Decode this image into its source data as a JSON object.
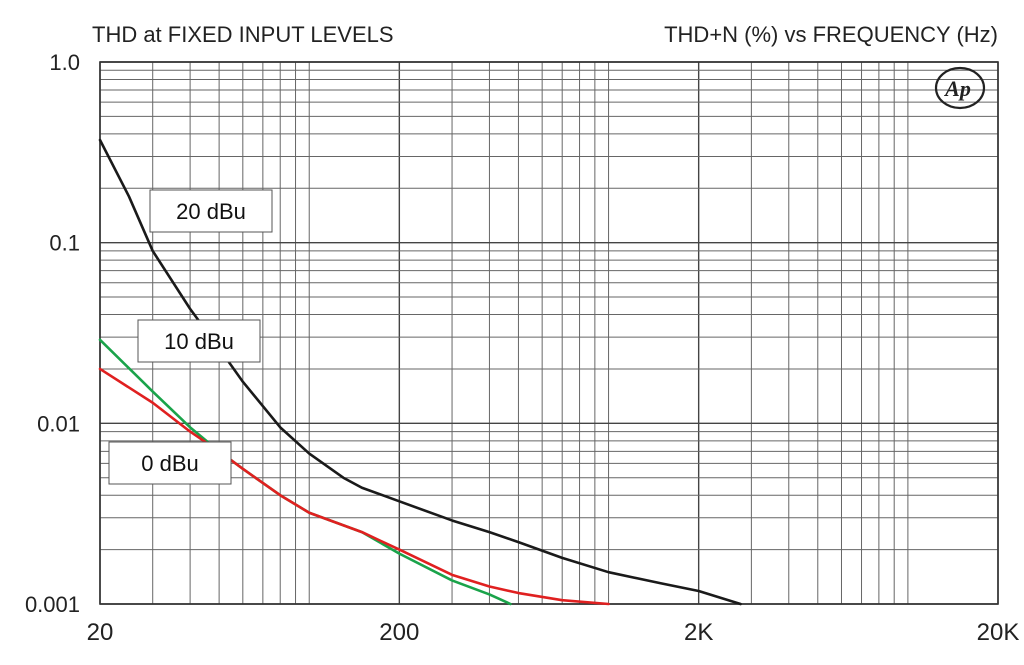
{
  "chart_data": {
    "type": "line",
    "title": "THD at FIXED INPUT LEVELS",
    "subtitle": "THD+N (%) vs FREQUENCY (Hz)",
    "x_scale": "log",
    "y_scale": "log",
    "xlim": [
      20,
      20000
    ],
    "ylim": [
      0.001,
      1.0
    ],
    "x_ticks": [
      {
        "value": 20,
        "label": "20"
      },
      {
        "value": 200,
        "label": "200"
      },
      {
        "value": 2000,
        "label": "2K"
      },
      {
        "value": 20000,
        "label": "20K"
      }
    ],
    "y_ticks": [
      {
        "value": 1.0,
        "label": "1.0"
      },
      {
        "value": 0.1,
        "label": "0.1"
      },
      {
        "value": 0.01,
        "label": "0.01"
      },
      {
        "value": 0.001,
        "label": "0.001"
      }
    ],
    "grid": true,
    "logo": "AP",
    "series": [
      {
        "name": "20 dBu",
        "color": "#1a1a1a",
        "points": [
          [
            20,
            0.37
          ],
          [
            25,
            0.18
          ],
          [
            30,
            0.09
          ],
          [
            40,
            0.043
          ],
          [
            50,
            0.026
          ],
          [
            60,
            0.017
          ],
          [
            80,
            0.0095
          ],
          [
            100,
            0.0068
          ],
          [
            130,
            0.005
          ],
          [
            150,
            0.0044
          ],
          [
            200,
            0.0037
          ],
          [
            300,
            0.0029
          ],
          [
            400,
            0.0025
          ],
          [
            500,
            0.0022
          ],
          [
            700,
            0.0018
          ],
          [
            1000,
            0.0015
          ],
          [
            1500,
            0.0013
          ],
          [
            2000,
            0.00118
          ],
          [
            2760,
            0.001
          ]
        ]
      },
      {
        "name": "10 dBu",
        "color": "#1aa34a",
        "points": [
          [
            20,
            0.029
          ],
          [
            30,
            0.015
          ],
          [
            40,
            0.0095
          ],
          [
            50,
            0.007
          ],
          [
            60,
            0.0056
          ],
          [
            80,
            0.004
          ],
          [
            100,
            0.0032
          ],
          [
            150,
            0.0025
          ],
          [
            200,
            0.0019
          ],
          [
            300,
            0.00135
          ],
          [
            400,
            0.00113
          ],
          [
            470,
            0.001
          ]
        ]
      },
      {
        "name": "0 dBu",
        "color": "#e02020",
        "points": [
          [
            20,
            0.02
          ],
          [
            30,
            0.013
          ],
          [
            40,
            0.009
          ],
          [
            50,
            0.007
          ],
          [
            60,
            0.0056
          ],
          [
            80,
            0.004
          ],
          [
            100,
            0.0032
          ],
          [
            150,
            0.0025
          ],
          [
            200,
            0.002
          ],
          [
            300,
            0.00145
          ],
          [
            400,
            0.00125
          ],
          [
            500,
            0.00115
          ],
          [
            700,
            0.00105
          ],
          [
            1000,
            0.001
          ]
        ]
      }
    ],
    "annotations": [
      {
        "text": "20 dBu",
        "series": "20 dBu"
      },
      {
        "text": "10 dBu",
        "series": "10 dBu"
      },
      {
        "text": "0 dBu",
        "series": "0 dBu"
      }
    ]
  }
}
